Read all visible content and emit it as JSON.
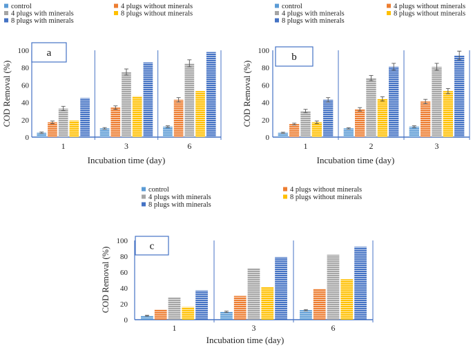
{
  "series_colors": {
    "control": "#5b9bd5",
    "4 plugs without minerals": "#ed7d31",
    "4 plugs with minerals": "#a5a5a5",
    "8 plugs without minerals": "#ffc000",
    "8 plugs with minerals": "#4472c4"
  },
  "axis_color": "#4472c4",
  "chart_data": [
    {
      "type": "bar",
      "panel_label": "a",
      "xlabel": "Incubation time (day)",
      "ylabel": "COD Removal   (%)",
      "ylim": [
        0,
        100
      ],
      "yticks": [
        0,
        20,
        40,
        60,
        80,
        100
      ],
      "categories": [
        "1",
        "3",
        "6"
      ],
      "legend": [
        "control",
        "4 plugs without minerals",
        "4 plugs with minerals",
        "8 plugs without minerals",
        "8 plugs with minerals"
      ],
      "series": [
        {
          "name": "control",
          "values": [
            5,
            10,
            12
          ],
          "errors": [
            0.8,
            1,
            1
          ]
        },
        {
          "name": "4 plugs without minerals",
          "values": [
            17,
            34,
            43
          ],
          "errors": [
            1.5,
            2,
            2.5
          ]
        },
        {
          "name": "4 plugs with minerals",
          "values": [
            33,
            75,
            85
          ],
          "errors": [
            2.5,
            3.5,
            4
          ]
        },
        {
          "name": "8 plugs without minerals",
          "values": [
            19,
            47,
            53
          ],
          "errors": [
            0,
            0,
            0
          ]
        },
        {
          "name": "8 plugs with minerals",
          "values": [
            45,
            86,
            98
          ],
          "errors": [
            0,
            0,
            0
          ]
        }
      ]
    },
    {
      "type": "bar",
      "panel_label": "b",
      "xlabel": "Incubation time (day)",
      "ylabel": "COD Removal   (%)",
      "ylim": [
        0,
        100
      ],
      "yticks": [
        0,
        20,
        40,
        60,
        80,
        100
      ],
      "categories": [
        "1",
        "2",
        "3"
      ],
      "legend": [
        "control",
        "4 plugs without minerals",
        "4 plugs with minerals",
        "8 plugs without minerals",
        "8 plugs with minerals"
      ],
      "series": [
        {
          "name": "control",
          "values": [
            5,
            10,
            12
          ],
          "errors": [
            0.6,
            0.8,
            1
          ]
        },
        {
          "name": "4 plugs without minerals",
          "values": [
            15,
            32,
            41
          ],
          "errors": [
            1,
            2,
            2.5
          ]
        },
        {
          "name": "4 plugs with minerals",
          "values": [
            30,
            68,
            81
          ],
          "errors": [
            2,
            3,
            4
          ]
        },
        {
          "name": "8 plugs without minerals",
          "values": [
            17,
            44,
            53
          ],
          "errors": [
            1.5,
            2.5,
            3
          ]
        },
        {
          "name": "8 plugs with minerals",
          "values": [
            43,
            81,
            94
          ],
          "errors": [
            2.5,
            4,
            5
          ]
        }
      ]
    },
    {
      "type": "bar",
      "panel_label": "c",
      "xlabel": "Incubation time (day)",
      "ylabel": "COD Removal   (%)",
      "ylim": [
        0,
        100
      ],
      "yticks": [
        0,
        20,
        40,
        60,
        80,
        100
      ],
      "categories": [
        "1",
        "3",
        "6"
      ],
      "legend": [
        "control",
        "4 plugs without minerals",
        "4 plugs with minerals",
        "8 plugs without minerals",
        "8 plugs with minerals"
      ],
      "series": [
        {
          "name": "control",
          "values": [
            5,
            10,
            12
          ],
          "errors": [
            0.6,
            0.8,
            0.8
          ]
        },
        {
          "name": "4 plugs without minerals",
          "values": [
            13,
            30,
            39
          ],
          "errors": [
            0,
            0,
            0
          ]
        },
        {
          "name": "4 plugs with minerals",
          "values": [
            28,
            65,
            82
          ],
          "errors": [
            0,
            0,
            0
          ]
        },
        {
          "name": "8 plugs without minerals",
          "values": [
            16,
            41,
            51
          ],
          "errors": [
            0,
            0,
            0
          ]
        },
        {
          "name": "8 plugs with minerals",
          "values": [
            37,
            79,
            92
          ],
          "errors": [
            0,
            0,
            0
          ]
        }
      ]
    }
  ]
}
